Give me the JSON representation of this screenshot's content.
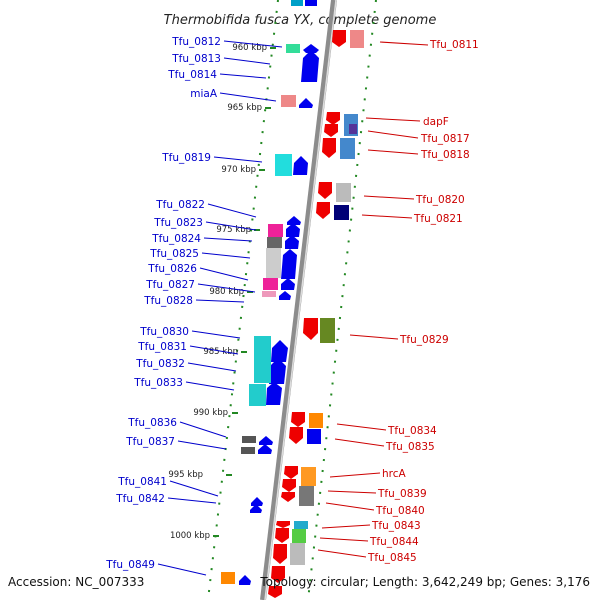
{
  "title": "Thermobifida fusca YX, complete genome",
  "footer": {
    "accession": "Accession: NC_007333",
    "topology": "Topology: circular; Length: 3,642,249 bp; Genes: 3,176"
  },
  "colors": {
    "left_label": "#0000cc",
    "right_label": "#cc0000",
    "backbone": "#999999",
    "ring_dots": "#228822",
    "forward_gene": "#ee0000",
    "reverse_gene": "#0000ee"
  },
  "kbp_labels": [
    "960 kbp",
    "965 kbp",
    "970 kbp",
    "975 kbp",
    "980 kbp",
    "985 kbp",
    "990 kbp",
    "995 kbp",
    "1000 kbp"
  ],
  "left_genes": [
    "Tfu_0812",
    "Tfu_0813",
    "Tfu_0814",
    "miaA",
    "Tfu_0819",
    "Tfu_0822",
    "Tfu_0823",
    "Tfu_0824",
    "Tfu_0825",
    "Tfu_0826",
    "Tfu_0827",
    "Tfu_0828",
    "Tfu_0830",
    "Tfu_0831",
    "Tfu_0832",
    "Tfu_0833",
    "Tfu_0836",
    "Tfu_0837",
    "Tfu_0841",
    "Tfu_0842",
    "Tfu_0849"
  ],
  "right_genes": [
    "Tfu_0811",
    "dapF",
    "Tfu_0817",
    "Tfu_0818",
    "Tfu_0820",
    "Tfu_0821",
    "Tfu_0829",
    "Tfu_0834",
    "Tfu_0835",
    "hrcA",
    "Tfu_0839",
    "Tfu_0840",
    "Tfu_0843",
    "Tfu_0844",
    "Tfu_0845"
  ]
}
